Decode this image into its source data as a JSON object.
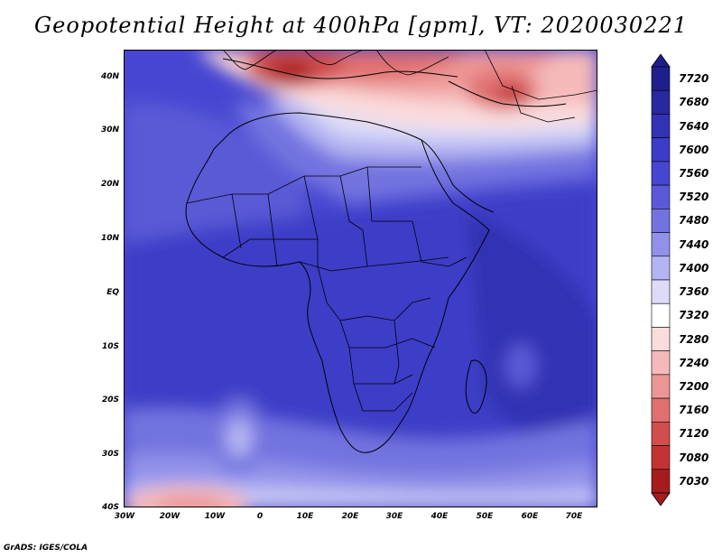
{
  "title": "Geopotential Height at 400hPa [gpm], VT: 2020030221",
  "credit": "GrADS: IGES/COLA",
  "lat_labels": [
    "40N",
    "30N",
    "20N",
    "10N",
    "EQ",
    "10S",
    "20S",
    "30S",
    "40S"
  ],
  "lon_labels": [
    "30W",
    "20W",
    "10W",
    "0",
    "10E",
    "20E",
    "30E",
    "40E",
    "50E",
    "60E",
    "70E"
  ],
  "colorbar": {
    "labels": [
      "7720",
      "7680",
      "7640",
      "7600",
      "7560",
      "7520",
      "7480",
      "7440",
      "7400",
      "7360",
      "7320",
      "7280",
      "7240",
      "7200",
      "7160",
      "7120",
      "7080",
      "7030"
    ],
    "colors": [
      "#1e1e8c",
      "#28289f",
      "#3232b4",
      "#3c3cc8",
      "#4646d2",
      "#5a5ad7",
      "#7373e0",
      "#9191e9",
      "#b4b4f2",
      "#dcdcf8",
      "#ffffff",
      "#fadcdc",
      "#f5b9b9",
      "#ec9595",
      "#e07070",
      "#d24d4d",
      "#c33333",
      "#a61c1c"
    ]
  }
}
